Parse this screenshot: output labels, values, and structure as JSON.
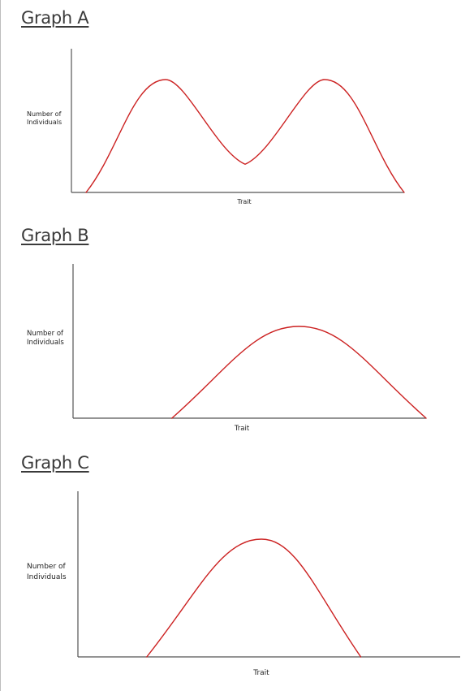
{
  "page": {
    "curve_color": "#cc2222",
    "axis_color": "#555555"
  },
  "chart_data": [
    {
      "type": "line",
      "title": "Graph A",
      "xlabel": "Trait",
      "ylabel": "Number of Individuals",
      "ylabel_lines": [
        "Number of",
        "Individuals"
      ],
      "xlim": [
        0,
        100
      ],
      "ylim": [
        0,
        100
      ],
      "grid": false,
      "series": [
        {
          "x": [
            0,
            25,
            50,
            75,
            100
          ],
          "y": [
            0,
            100,
            25,
            100,
            0
          ]
        }
      ]
    },
    {
      "type": "line",
      "title": "Graph B",
      "xlabel": "Trait",
      "ylabel": "Number of Individuals",
      "ylabel_lines": [
        "Number of",
        "Individuals"
      ],
      "xlim": [
        0,
        100
      ],
      "ylim": [
        0,
        100
      ],
      "grid": false,
      "series": [
        {
          "x": [
            28,
            64,
            100
          ],
          "y": [
            0,
            100,
            0
          ]
        }
      ]
    },
    {
      "type": "line",
      "title": "Graph C",
      "xlabel": "Trait",
      "ylabel": "Number of Individuals",
      "ylabel_lines": [
        "Number of",
        "Individuals"
      ],
      "xlim": [
        0,
        100
      ],
      "ylim": [
        0,
        100
      ],
      "grid": false,
      "series": [
        {
          "x": [
            18,
            48,
            74
          ],
          "y": [
            0,
            100,
            0
          ]
        }
      ]
    }
  ]
}
